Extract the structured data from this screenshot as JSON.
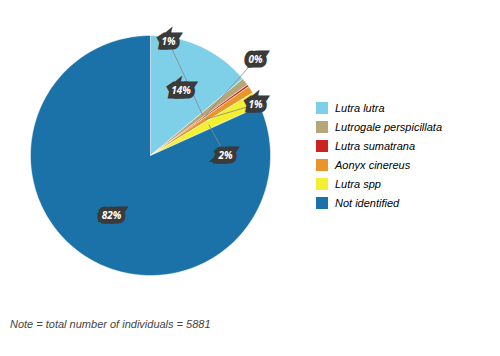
{
  "chart_data": {
    "type": "pie",
    "categories": [
      "Lutra lutra",
      "Lutrogale perspicillata",
      "Lutra sumatrana",
      "Aonyx cinereus",
      "Lutra spp",
      "Not identified"
    ],
    "values": [
      14,
      1,
      0.3,
      1,
      2,
      82
    ],
    "value_labels": [
      "14%",
      "1%",
      "0%",
      "1%",
      "2%",
      "82%"
    ],
    "colors": [
      "#7ecfe8",
      "#b5a878",
      "#cc2222",
      "#e8962a",
      "#f2f030",
      "#1a72a8"
    ],
    "data_labels": true,
    "legend": "right",
    "annotations": [
      "Note = total number of individuals = 5881"
    ]
  }
}
